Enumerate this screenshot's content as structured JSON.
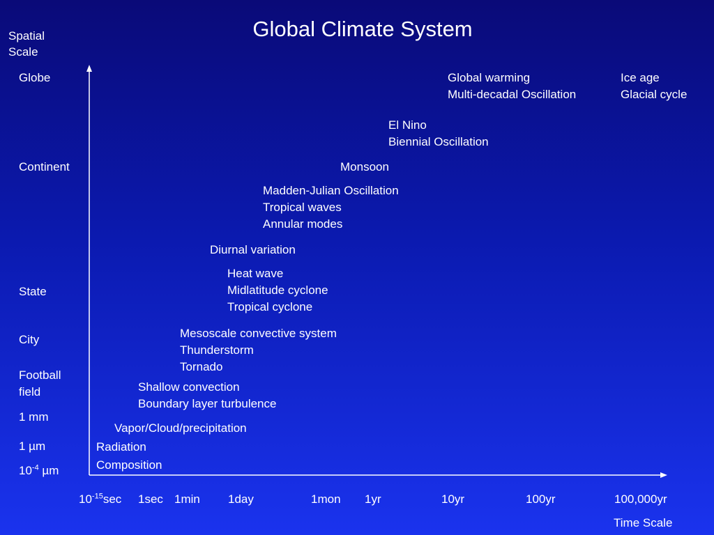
{
  "title": "Global Climate System",
  "y_axis_label": [
    "Spatial",
    "Scale"
  ],
  "x_axis_label": "Time Scale",
  "y_ticks": {
    "globe": "Globe",
    "continent": "Continent",
    "state": "State",
    "city": "City",
    "football": [
      "Football",
      "field"
    ],
    "mm": "1 mm",
    "um": "1 µm",
    "tiny_base": "10",
    "tiny_exp": "-4",
    "tiny_unit": " µm"
  },
  "x_ticks": {
    "fs_base": "10",
    "fs_exp": "-15",
    "fs_unit": "sec",
    "sec": "1sec",
    "min": "1min",
    "day": "1day",
    "mon": "1mon",
    "yr": "1yr",
    "dec": "10yr",
    "cent": "100yr",
    "kyr": "100,000yr"
  },
  "phenomena": {
    "global_warming": [
      "Global warming",
      "Multi-decadal Oscillation"
    ],
    "ice_age": [
      "Ice age",
      "Glacial cycle"
    ],
    "el_nino": [
      "El Nino",
      "Biennial Oscillation"
    ],
    "monsoon": [
      "Monsoon"
    ],
    "mjo": [
      "Madden-Julian Oscillation",
      "Tropical waves",
      "Annular modes"
    ],
    "diurnal": [
      "Diurnal variation"
    ],
    "heat_wave": [
      "Heat wave",
      "Midlatitude cyclone",
      "Tropical cyclone"
    ],
    "mesoscale": [
      "Mesoscale convective system",
      "Thunderstorm",
      "Tornado"
    ],
    "shallow": [
      "Shallow convection",
      "Boundary layer turbulence"
    ],
    "vapor": [
      "Vapor/Cloud/precipitation"
    ],
    "radiation": [
      "Radiation",
      "Composition"
    ]
  },
  "colors": {
    "background_top": "#0a0a78",
    "background_bottom": "#1a33ee",
    "text": "#ffffff"
  }
}
